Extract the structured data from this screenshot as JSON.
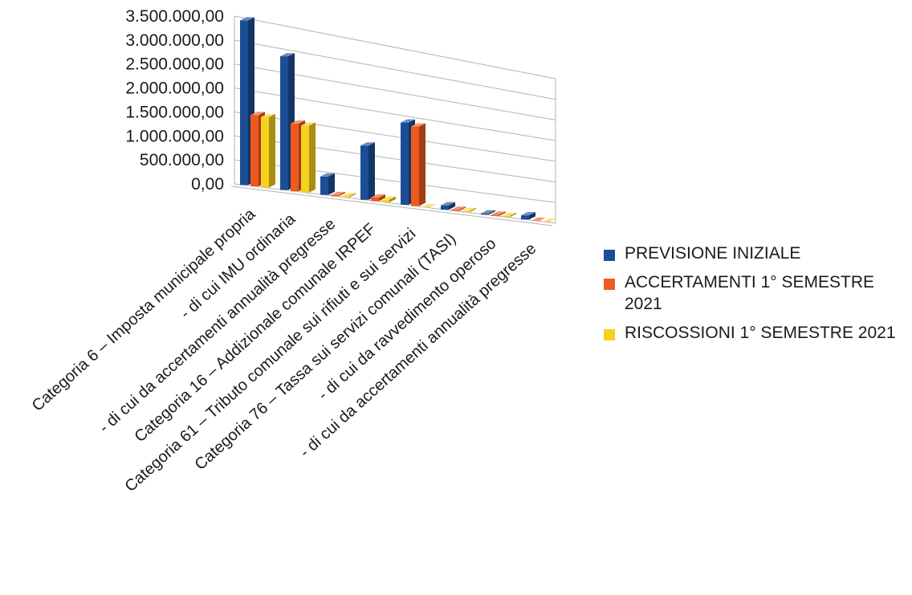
{
  "chart_data": {
    "type": "bar",
    "categories": [
      "Categoria 6 – Imposta municipale propria",
      "- di cui IMU ordinaria",
      "- di cui da accertamenti annualità pregresse",
      "Categoria 16 – Addizionale comunale IRPEF",
      "Categoria 61 – Tributo comunale sui rifiuti e sui servizi",
      "Categoria 76 – Tassa sui servizi comunali (TASI)",
      "- di cui da ravvedimento operoso",
      "- di cui da accertamenti annualità pregresse"
    ],
    "series": [
      {
        "name": "PREVISIONE INIZIALE",
        "color": "#1c4e96",
        "values": [
          3450000,
          2850000,
          400000,
          1200000,
          1850000,
          100000,
          20000,
          100000
        ]
      },
      {
        "name": "ACCERTAMENTI 1° SEMESTRE 2021",
        "color": "#ee5a1e",
        "values": [
          1500000,
          1450000,
          5000,
          80000,
          1800000,
          10000,
          10000,
          0
        ]
      },
      {
        "name": "RISCOSSIONI 1° SEMESTRE 2021",
        "color": "#f7d11e",
        "values": [
          1490000,
          1440000,
          5000,
          60000,
          0,
          10000,
          10000,
          0
        ]
      }
    ],
    "ylim": [
      0,
      3500000
    ],
    "yticks": [
      0,
      500000,
      1000000,
      1500000,
      2000000,
      2500000,
      3000000,
      3500000
    ],
    "ytick_labels": [
      "0,00",
      "500.000,00",
      "1.000.000,00",
      "1.500.000,00",
      "2.000.000,00",
      "2.500.000,00",
      "3.000.000,00",
      "3.500.000,00"
    ],
    "grid": true,
    "legend": "right",
    "style": "3d-perspective"
  }
}
